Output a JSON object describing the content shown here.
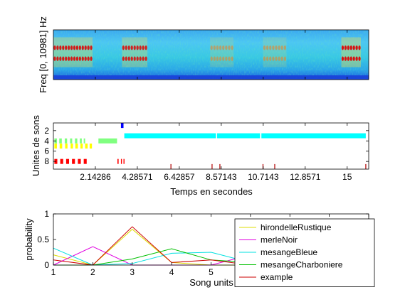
{
  "chart_data": [
    {
      "type": "heatmap",
      "ylabel": "Freq [0, 10981] Hz",
      "xlim": [
        0,
        16.1
      ],
      "xticks": [
        2.14286,
        4.28571,
        6.42857,
        8.57143,
        10.7143,
        12.8571,
        15
      ],
      "colormap": "jet",
      "harmonic_rows": [
        0.36,
        0.58
      ],
      "hotspots": [
        {
          "x0": 0.0,
          "x1": 2.0,
          "intensity": 0.85
        },
        {
          "x0": 3.5,
          "x1": 4.8,
          "intensity": 0.8
        },
        {
          "x0": 8.0,
          "x1": 9.2,
          "intensity": 0.45
        },
        {
          "x0": 10.7,
          "x1": 11.9,
          "intensity": 0.45
        },
        {
          "x0": 14.7,
          "x1": 15.7,
          "intensity": 1.0
        }
      ]
    },
    {
      "type": "scatter",
      "xlabel": "Temps en secondes",
      "ylabel": "Unites de sons",
      "xlim": [
        0,
        16.1
      ],
      "ylim": [
        0.5,
        9.5
      ],
      "yticks": [
        2,
        4,
        6,
        8
      ],
      "xticks": [
        2.14286,
        4.28571,
        6.42857,
        8.57143,
        10.7143,
        12.8571,
        15
      ],
      "xtick_labels": [
        "2.14286",
        "4.28571",
        "6.42857",
        "8.57143",
        "10.7143",
        "12.8571",
        "15"
      ],
      "series": [
        {
          "unit": 1,
          "color": "#0000ff",
          "segments": [
            [
              3.45,
              3.58
            ]
          ]
        },
        {
          "unit": 3,
          "color": "#00ffff",
          "segments": [
            [
              3.62,
              8.3
            ],
            [
              8.36,
              10.55
            ],
            [
              10.62,
              15.95
            ]
          ]
        },
        {
          "unit": 4,
          "color": "#80ff80",
          "segments": [
            [
              0.05,
              0.18
            ],
            [
              0.3,
              0.43
            ],
            [
              0.58,
              0.7
            ],
            [
              0.85,
              0.96
            ],
            [
              1.1,
              1.22
            ],
            [
              1.35,
              1.45
            ],
            [
              1.55,
              1.62
            ],
            [
              2.3,
              3.25
            ]
          ]
        },
        {
          "unit": 5,
          "color": "#ffff00",
          "segments": [
            [
              0.05,
              0.18
            ],
            [
              0.32,
              0.45
            ],
            [
              0.6,
              0.72
            ],
            [
              0.88,
              1.0
            ],
            [
              1.12,
              1.25
            ],
            [
              1.38,
              1.5
            ],
            [
              1.62,
              1.75
            ],
            [
              1.85,
              1.97
            ]
          ]
        },
        {
          "unit": 8,
          "color": "#ff0000",
          "segments": [
            [
              0.05,
              0.2
            ],
            [
              0.35,
              0.5
            ],
            [
              0.65,
              0.8
            ],
            [
              0.95,
              1.1
            ],
            [
              1.25,
              1.4
            ],
            [
              1.55,
              1.7
            ],
            [
              3.27,
              3.33
            ],
            [
              3.45,
              3.5
            ],
            [
              3.58,
              3.63
            ]
          ]
        },
        {
          "unit": 9,
          "color": "#b00000",
          "segments": [
            [
              5.98,
              6.02
            ],
            [
              8.08,
              8.12
            ],
            [
              8.48,
              8.52
            ],
            [
              10.68,
              10.72
            ],
            [
              11.28,
              11.32
            ],
            [
              15.93,
              15.97
            ]
          ]
        }
      ]
    },
    {
      "type": "line",
      "xlabel": "Song units",
      "ylabel": "probability",
      "x": [
        1,
        2,
        3,
        4,
        5,
        6,
        7,
        8,
        9
      ],
      "xlim": [
        1,
        9
      ],
      "ylim": [
        0,
        1
      ],
      "xticks": [
        1,
        2,
        3,
        4,
        5,
        6,
        7,
        8,
        9
      ],
      "yticks": [
        0,
        0.5,
        1
      ],
      "legend_position": "top-right",
      "series": [
        {
          "name": "hirondelleRustique",
          "color": "#dddd00",
          "values": [
            0.2,
            0.0,
            0.7,
            0.05,
            0.0,
            0.0,
            0.0,
            0.0,
            0.05
          ]
        },
        {
          "name": "merleNoir",
          "color": "#e000e0",
          "values": [
            0.0,
            0.36,
            0.0,
            0.0,
            0.0,
            0.2,
            0.0,
            0.0,
            0.0
          ]
        },
        {
          "name": "mesangeBleue",
          "color": "#00e0e0",
          "values": [
            0.33,
            0.0,
            0.03,
            0.23,
            0.25,
            0.05,
            0.05,
            0.05,
            0.02
          ]
        },
        {
          "name": "mesangeCharboniere",
          "color": "#00c000",
          "values": [
            0.0,
            0.0,
            0.12,
            0.32,
            0.1,
            0.05,
            0.1,
            0.1,
            0.2
          ]
        },
        {
          "name": "example",
          "color": "#cc0000",
          "values": [
            0.1,
            0.0,
            0.75,
            0.05,
            0.1,
            0.0,
            0.0,
            0.0,
            0.0
          ]
        }
      ]
    }
  ]
}
